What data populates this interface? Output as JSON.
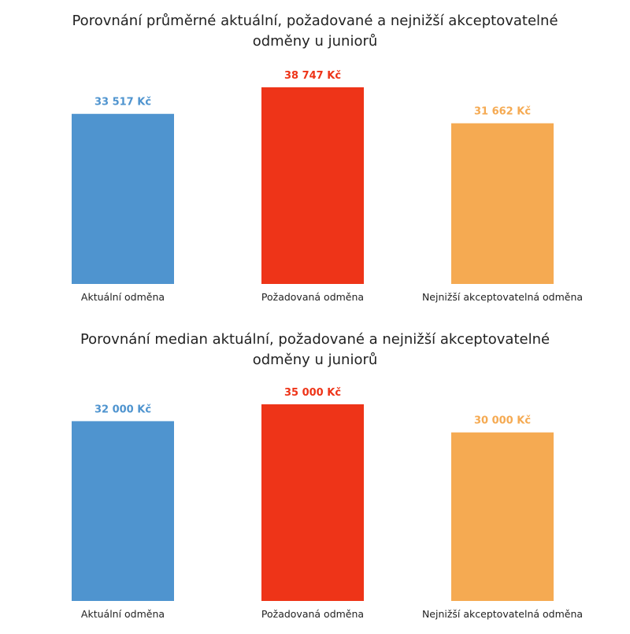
{
  "chart_data": [
    {
      "type": "bar",
      "title_lines": [
        "Porovnání průměrné aktuální, požadované a nejnižší akceptovatelné",
        "odměny u juniorů"
      ],
      "title": "Porovnání průměrné aktuální, požadované a nejnižší akceptovatelné odměny u juniorů",
      "categories": [
        "Aktuální odměna",
        "Požadovaná odměna",
        "Nejnižší akceptovatelná odměna"
      ],
      "values": [
        33517,
        38747,
        31662
      ],
      "value_labels": [
        "33 517 Kč",
        "38 747 Kč",
        "31 662 Kč"
      ],
      "colors": [
        "#4f94cf",
        "#ee3418",
        "#f5aa52"
      ],
      "xlabel": "",
      "ylabel": "",
      "grid": false,
      "legend": "none"
    },
    {
      "type": "bar",
      "title_lines": [
        "Porovnání median aktuální, požadované a nejnižší akceptovatelné",
        "odměny u juniorů"
      ],
      "title": "Porovnání median aktuální, požadované a nejnižší akceptovatelné odměny u juniorů",
      "categories": [
        "Aktuální odměna",
        "Požadovaná odměna",
        "Nejnižší akceptovatelná odměna"
      ],
      "values": [
        32000,
        35000,
        30000
      ],
      "value_labels": [
        "32 000 Kč",
        "35 000 Kč",
        "30 000 Kč"
      ],
      "colors": [
        "#4f94cf",
        "#ee3418",
        "#f5aa52"
      ],
      "xlabel": "",
      "ylabel": "",
      "grid": false,
      "legend": "none"
    }
  ]
}
